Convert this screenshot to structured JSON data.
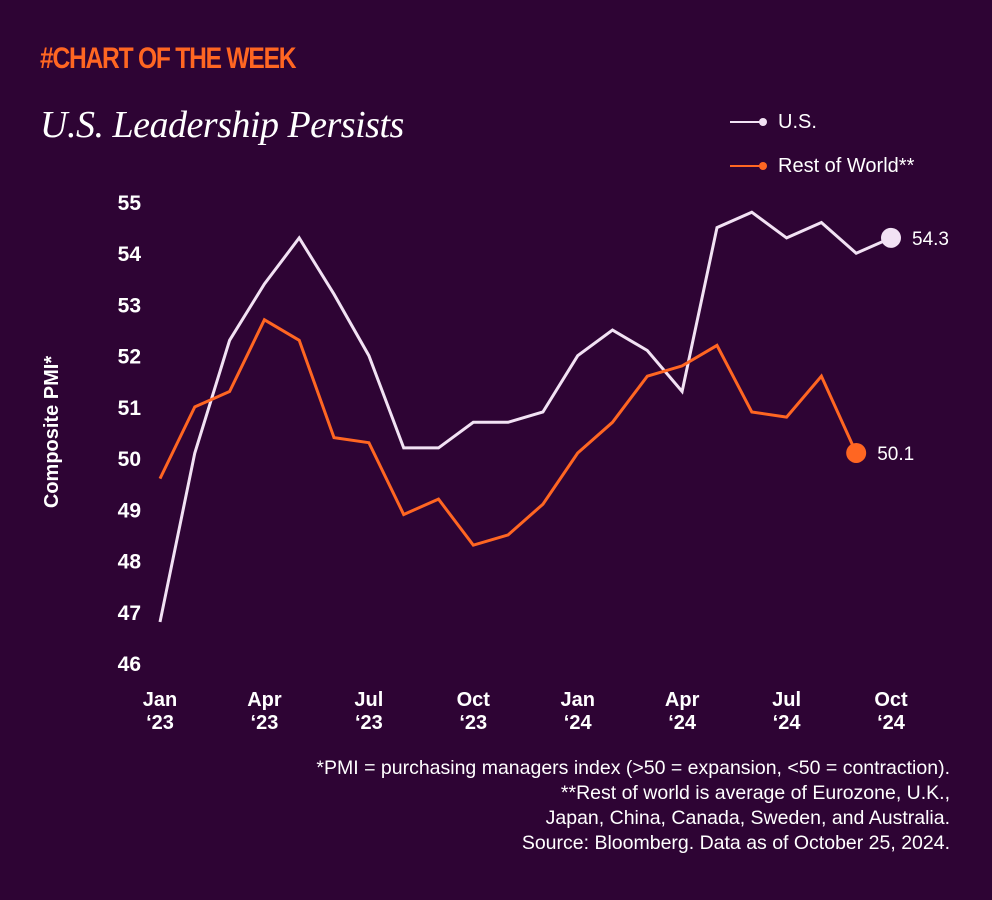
{
  "header": {
    "kicker": "#CHART OF THE WEEK",
    "title": "U.S. Leadership Persists"
  },
  "colors": {
    "background": "#2e0434",
    "us": "#f2e2f4",
    "row": "#ff6622",
    "kicker": "#ff6622",
    "text": "#ffffff"
  },
  "footnotes": [
    "*PMI = purchasing managers index (>50 = expansion, <50 = contraction).",
    "**Rest of world is average of Eurozone, U.K.,",
    "Japan, China, Canada, Sweden, and Australia.",
    "Source: Bloomberg. Data as of October 25, 2024."
  ],
  "chart_data": {
    "type": "line",
    "title": "U.S. Leadership Persists",
    "xlabel": "",
    "ylabel": "Composite PMI*",
    "ylim": [
      46,
      55
    ],
    "yticks": [
      55,
      54,
      53,
      52,
      51,
      50,
      49,
      48,
      47,
      46
    ],
    "grid": false,
    "legend_position": "top-right",
    "x": [
      "Jan '23",
      "Feb '23",
      "Mar '23",
      "Apr '23",
      "May '23",
      "Jun '23",
      "Jul '23",
      "Aug '23",
      "Sep '23",
      "Oct '23",
      "Nov '23",
      "Dec '23",
      "Jan '24",
      "Feb '24",
      "Mar '24",
      "Apr '24",
      "May '24",
      "Jun '24",
      "Jul '24",
      "Aug '24",
      "Sep '24",
      "Oct '24"
    ],
    "xticks": [
      {
        "index": 0,
        "line1": "Jan",
        "line2": "‘23"
      },
      {
        "index": 3,
        "line1": "Apr",
        "line2": "‘23"
      },
      {
        "index": 6,
        "line1": "Jul",
        "line2": "‘23"
      },
      {
        "index": 9,
        "line1": "Oct",
        "line2": "‘23"
      },
      {
        "index": 12,
        "line1": "Jan",
        "line2": "‘24"
      },
      {
        "index": 15,
        "line1": "Apr",
        "line2": "‘24"
      },
      {
        "index": 18,
        "line1": "Jul",
        "line2": "‘24"
      },
      {
        "index": 21,
        "line1": "Oct",
        "line2": "‘24"
      }
    ],
    "series": [
      {
        "name": "U.S.",
        "key": "us",
        "values": [
          46.8,
          50.1,
          52.3,
          53.4,
          54.3,
          53.2,
          52.0,
          50.2,
          50.2,
          50.7,
          50.7,
          50.9,
          52.0,
          52.5,
          52.1,
          51.3,
          54.5,
          54.8,
          54.3,
          54.6,
          54.0,
          54.3
        ],
        "end_label": "54.3"
      },
      {
        "name": "Rest of World**",
        "key": "row",
        "values": [
          49.6,
          51.0,
          51.3,
          52.7,
          52.3,
          50.4,
          50.3,
          48.9,
          49.2,
          48.3,
          48.5,
          49.1,
          50.1,
          50.7,
          51.6,
          51.8,
          52.2,
          50.9,
          50.8,
          51.6,
          50.1,
          null
        ],
        "end_label": "50.1"
      }
    ]
  }
}
